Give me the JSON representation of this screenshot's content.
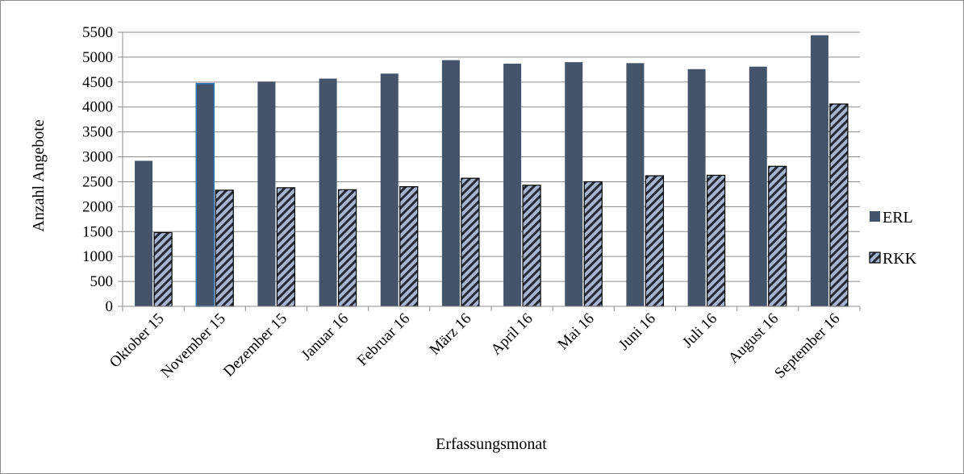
{
  "chart_data": {
    "type": "bar",
    "title": "",
    "xlabel": "Erfassungsmonat",
    "ylabel": "Anzahl Angebote",
    "ylim": [
      0,
      5500
    ],
    "ytick_step": 500,
    "grid": "horizontal",
    "legend_position": "right",
    "categories": [
      "Oktober 15",
      "November 15",
      "Dezember 15",
      "Januar 16",
      "Februar 16",
      "März 16",
      "April 16",
      "Mai 16",
      "Juni 16",
      "Juli 16",
      "August 16",
      "September 16"
    ],
    "series": [
      {
        "name": "ERL",
        "values": [
          2920,
          4470,
          4510,
          4570,
          4670,
          4940,
          4870,
          4900,
          4880,
          4760,
          4810,
          5440
        ],
        "color": "#44546a",
        "pattern": "solid"
      },
      {
        "name": "RKK",
        "values": [
          1480,
          2330,
          2380,
          2340,
          2400,
          2570,
          2430,
          2500,
          2620,
          2630,
          2810,
          4060
        ],
        "color": "#a7b5cf",
        "pattern": "diagonal-stripes"
      }
    ],
    "yticks": [
      "0",
      "500",
      "1000",
      "1500",
      "2000",
      "2500",
      "3000",
      "3500",
      "4000",
      "4500",
      "5000",
      "5500"
    ]
  }
}
